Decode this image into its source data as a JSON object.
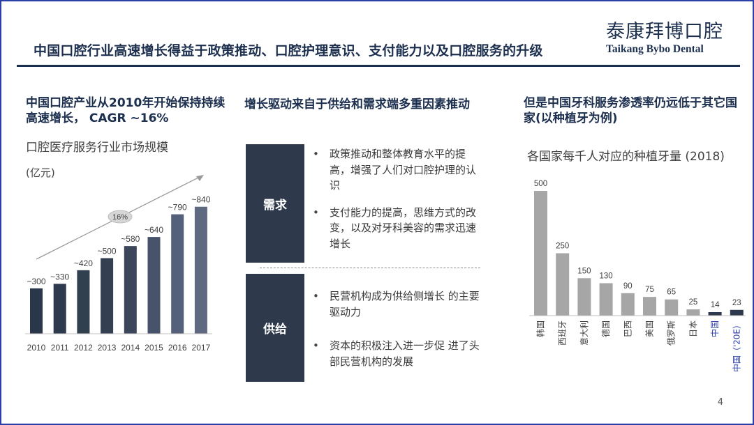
{
  "header": {
    "title": "中国口腔行业高速增长得益于政策推动、口腔护理意识、支付能力以及口腔服务的升级",
    "logo_cn": "泰康拜博口腔",
    "logo_en": "Taikang Bybo Dental"
  },
  "left": {
    "heading": "中国口腔产业从2010年开始保持持续高速增长， CAGR ~16%",
    "chart_title": "口腔医疗服务行业市场规模",
    "unit": "(亿元)",
    "cagr_label": "16%"
  },
  "middle": {
    "heading": "增长驱动来自于供给和需求端多重因素推动",
    "demand_label": "需求",
    "demand_items": [
      "政策推动和整体教育水平的提高，增强了人们对口腔护理的认识",
      "支付能力的提高，思维方式的改变，以及对牙科美容的需求迅速增长"
    ],
    "supply_label": "供给",
    "supply_items": [
      "民营机构成为供给侧增长 的主要驱动力",
      "资本的积极注入进一步促 进了头部民营机构的发展"
    ]
  },
  "right": {
    "heading": "但是中国牙科服务渗透率仍远低于其它国 家(以种植牙为例)",
    "chart_title": "各国家每千人对应的种植牙量 (2018)"
  },
  "page_number": "4",
  "colors": {
    "navy": "#1c2f4e",
    "bar_dark": "#2e3a4c",
    "bar_grey": "#a6a6a6",
    "bar_china": "#2e3a4c"
  },
  "chart_data": [
    {
      "type": "bar",
      "title": "口腔医疗服务行业市场规模",
      "ylabel": "(亿元)",
      "categories": [
        "2010",
        "2011",
        "2012",
        "2013",
        "2014",
        "2015",
        "2016",
        "2017"
      ],
      "values": [
        300,
        330,
        420,
        500,
        580,
        640,
        790,
        840
      ],
      "data_labels": [
        "~300",
        "~330",
        "~420",
        "~500",
        "~580",
        "~640",
        "~790",
        "~840"
      ],
      "annotation": "16%",
      "grid": false
    },
    {
      "type": "bar",
      "title": "各国家每千人对应的种植牙量 (2018)",
      "categories": [
        "韩国",
        "西班牙",
        "意大利",
        "德国",
        "巴西",
        "美国",
        "俄罗斯",
        "日本",
        "中国",
        "中国（'20E）"
      ],
      "values": [
        500,
        250,
        150,
        130,
        90,
        75,
        65,
        25,
        14,
        23
      ],
      "ylim": [
        0,
        500
      ],
      "grid": false
    }
  ]
}
